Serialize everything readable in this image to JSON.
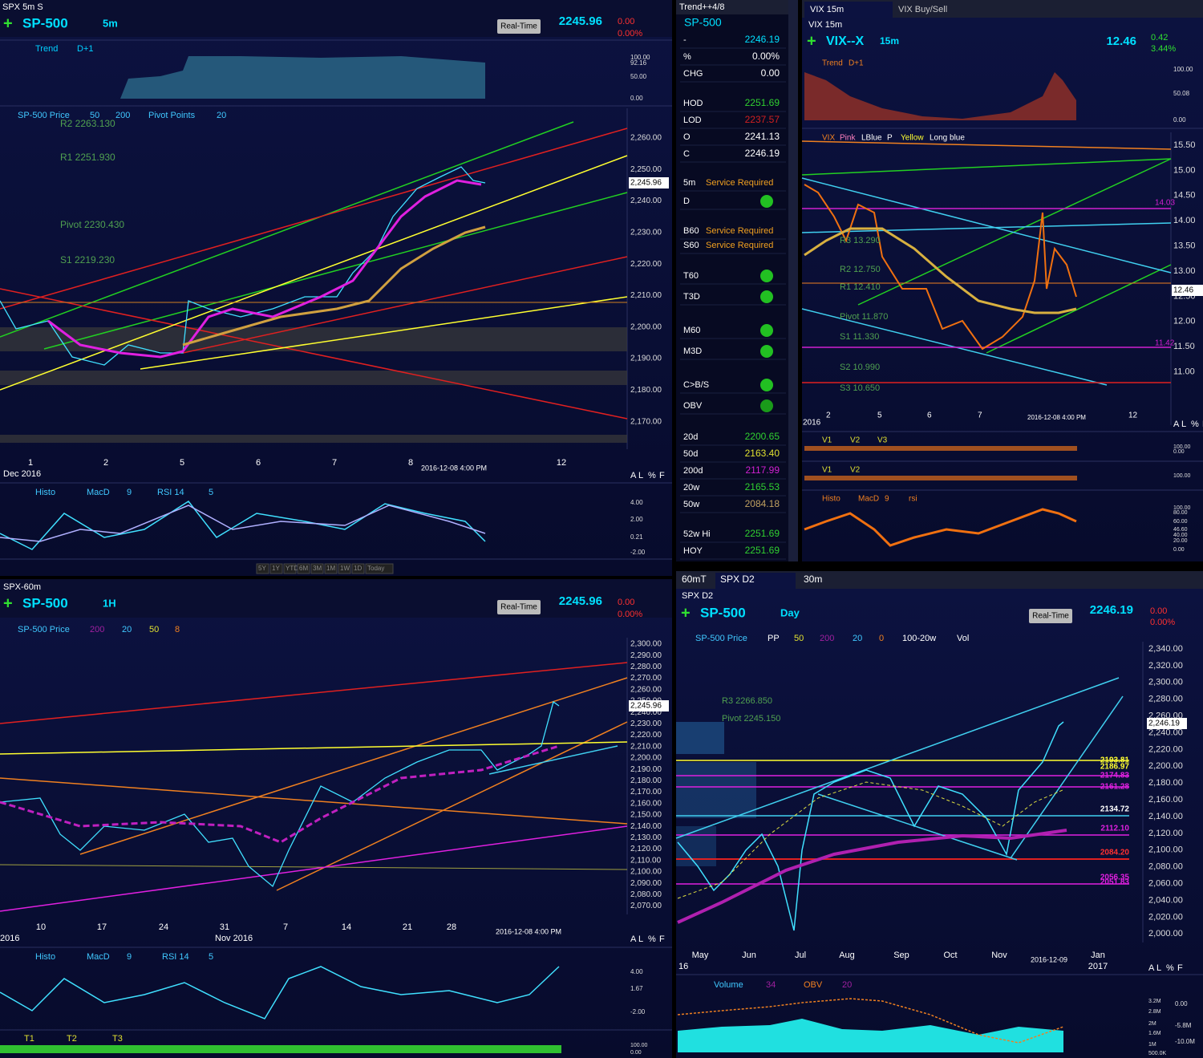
{
  "spx5m": {
    "tab": "SPX 5m S",
    "symbol": "SP-500",
    "interval": "5m",
    "realtime": "Real-Time",
    "price": "2245.96",
    "chg": "0.00",
    "pct": "0.00%",
    "trend_legend": [
      "Trend",
      "D+1"
    ],
    "trend_axis": [
      "100.00",
      "92.16",
      "50.00",
      "0.00"
    ],
    "price_legend": [
      "SP-500 Price",
      "50",
      "200",
      "Pivot Points",
      "20"
    ],
    "levels": [
      "R2 2263.130",
      "R1 2251.930",
      "Pivot 2230.430",
      "S1 2219.230"
    ],
    "yaxis": [
      "2,260.00",
      "2,250.00",
      "2,240.00",
      "2,230.00",
      "2,220.00",
      "2,210.00",
      "2,200.00",
      "2,190.00",
      "2,180.00",
      "2,170.00"
    ],
    "last": "2,245.96",
    "xaxis": [
      "1",
      "2",
      "5",
      "6",
      "7",
      "8",
      "12"
    ],
    "date_label": "Dec 2016",
    "timestamp": "2016-12-08 4:00 PM",
    "osc_legend": [
      "Histo",
      "MacD",
      "9",
      "RSI 14",
      "5"
    ],
    "osc_axis": [
      "4.00",
      "2.00",
      "0.21",
      "-2.00"
    ],
    "ranges": [
      "5Y",
      "1Y",
      "YTD",
      "6M",
      "3M",
      "1M",
      "1W",
      "1D",
      "Today"
    ]
  },
  "watchlist": {
    "title": "Trend++4/8",
    "symbol": "SP-500",
    "rows": [
      {
        "label": "-",
        "value": "2246.19"
      },
      {
        "label": "%",
        "value": "0.00%"
      },
      {
        "label": "CHG",
        "value": "0.00"
      },
      {
        "label": "HOD",
        "value": "2251.69"
      },
      {
        "label": "LOD",
        "value": "2237.57"
      },
      {
        "label": "O",
        "value": "2241.13"
      },
      {
        "label": "C",
        "value": "2246.19"
      },
      {
        "label": "5m",
        "value": "Service Required"
      },
      {
        "label": "D",
        "status": "#22c022"
      },
      {
        "label": "B60",
        "value": "Service Required"
      },
      {
        "label": "S60",
        "value": "Service Required"
      },
      {
        "label": "T60",
        "status": "#22c022"
      },
      {
        "label": "T3D",
        "status": "#22c022"
      },
      {
        "label": "M60",
        "status": "#22c022"
      },
      {
        "label": "M3D",
        "status": "#22c022"
      },
      {
        "label": "C>B/S",
        "status": "#22c022"
      },
      {
        "label": "OBV",
        "status": "#1a9a1a"
      },
      {
        "label": "20d",
        "value": "2200.65"
      },
      {
        "label": "50d",
        "value": "2163.40"
      },
      {
        "label": "200d",
        "value": "2117.99"
      },
      {
        "label": "20w",
        "value": "2165.53"
      },
      {
        "label": "50w",
        "value": "2084.18"
      },
      {
        "label": "52w Hi",
        "value": "2251.69"
      },
      {
        "label": "HOY",
        "value": "2251.69"
      }
    ]
  },
  "vix": {
    "tabs": [
      "VIX 15m",
      "VIX Buy/Sell"
    ],
    "subtitle": "VIX 15m",
    "symbol": "VIX--X",
    "interval": "15m",
    "price": "12.46",
    "chg": "0.42",
    "pct": "3.44%",
    "trend_legend": [
      "Trend",
      "D+1"
    ],
    "trend_axis": [
      "100.00",
      "50.08",
      "0.00"
    ],
    "price_legend": [
      "VIX",
      "Pink",
      "LBlue",
      "P",
      "Yellow",
      "Long blue"
    ],
    "yaxis": [
      "15.50",
      "15.00",
      "14.50",
      "14.00",
      "13.50",
      "13.00",
      "12.50",
      "12.00",
      "11.50",
      "11.00"
    ],
    "levels": [
      "R3 13.290",
      "R2 12.750",
      "R1 12.410",
      "Pivot 11.870",
      "S1 11.330",
      "S2 10.990",
      "S3 10.650"
    ],
    "marks": [
      "14.03",
      "11.42"
    ],
    "last": "12.46",
    "xaxis": [
      "2016",
      "2",
      "5",
      "6",
      "7",
      "12"
    ],
    "timestamp": "2016-12-08 4:00 PM",
    "ind1": [
      "V1",
      "V2",
      "V3"
    ],
    "ind2": [
      "V1",
      "V2"
    ],
    "ind_axis": [
      "100.00",
      "0.00"
    ],
    "osc_legend": [
      "Histo",
      "MacD",
      "9",
      "rsi"
    ],
    "osc_axis": [
      "100.00",
      "80.00",
      "60.00",
      "46.60",
      "40.00",
      "20.00",
      "0.00"
    ]
  },
  "spx60": {
    "tab": "SPX-60m",
    "symbol": "SP-500",
    "interval": "1H",
    "realtime": "Real-Time",
    "price": "2245.96",
    "chg": "0.00",
    "pct": "0.00%",
    "price_legend": [
      "SP-500 Price",
      "200",
      "20",
      "50",
      "8"
    ],
    "yaxis": [
      "2,300.00",
      "2,290.00",
      "2,280.00",
      "2,270.00",
      "2,260.00",
      "2,250.00",
      "2,240.00",
      "2,230.00",
      "2,220.00",
      "2,210.00",
      "2,200.00",
      "2,190.00",
      "2,180.00",
      "2,170.00",
      "2,160.00",
      "2,150.00",
      "2,140.00",
      "2,130.00",
      "2,120.00",
      "2,110.00",
      "2,100.00",
      "2,090.00",
      "2,080.00",
      "2,070.00"
    ],
    "last": "2,245.96",
    "xaxis": [
      "10",
      "17",
      "24",
      "31",
      "7",
      "14",
      "21",
      "28"
    ],
    "year": "2016",
    "month": "Nov 2016",
    "timestamp": "2016-12-08 4:00 PM",
    "osc_legend": [
      "Histo",
      "MacD",
      "9",
      "RSI 14",
      "5"
    ],
    "osc_axis": [
      "4.00",
      "1.67",
      "-2.00"
    ],
    "t_legend": [
      "T1",
      "T2",
      "T3"
    ],
    "t_axis": [
      "100.00",
      "0.00"
    ]
  },
  "spxd2": {
    "tabs": [
      "60mT",
      "SPX D2",
      "30m"
    ],
    "subtitle": "SPX D2",
    "symbol": "SP-500",
    "interval": "Day",
    "realtime": "Real-Time",
    "price": "2246.19",
    "chg": "0.00",
    "pct": "0.00%",
    "price_legend": [
      "SP-500 Price",
      "PP",
      "50",
      "200",
      "20",
      "0",
      "100-20w",
      "Vol"
    ],
    "yaxis": [
      "2,340.00",
      "2,320.00",
      "2,300.00",
      "2,280.00",
      "2,260.00",
      "2,240.00",
      "2,220.00",
      "2,200.00",
      "2,180.00",
      "2,160.00",
      "2,140.00",
      "2,120.00",
      "2,100.00",
      "2,080.00",
      "2,060.00",
      "2,040.00",
      "2,020.00",
      "2,000.00"
    ],
    "last": "2,246.19",
    "levels": [
      "2193.81",
      "2186.97",
      "2174.83",
      "2161.28",
      "2134.72",
      "2112.10",
      "2084.20",
      "2056.35",
      "2051.83"
    ],
    "pivots": [
      "R3 2266.850",
      "Pivot 2245.150"
    ],
    "xaxis": [
      "May",
      "Jun",
      "Jul",
      "Aug",
      "Sep",
      "Oct",
      "Nov",
      "Jan"
    ],
    "year": "16",
    "next_year": "2017",
    "timestamp": "2016-12-09",
    "vol_legend": [
      "Volume",
      "34",
      "OBV",
      "20"
    ],
    "vol_axis": [
      "3.2M",
      "2.8M",
      "2M",
      "1.6M",
      "1M",
      "500.0K"
    ],
    "obv_axis": [
      "0.00",
      "-5.8M",
      "-10.0M"
    ]
  },
  "scale_buttons": [
    "A",
    "L",
    "%",
    "F"
  ]
}
